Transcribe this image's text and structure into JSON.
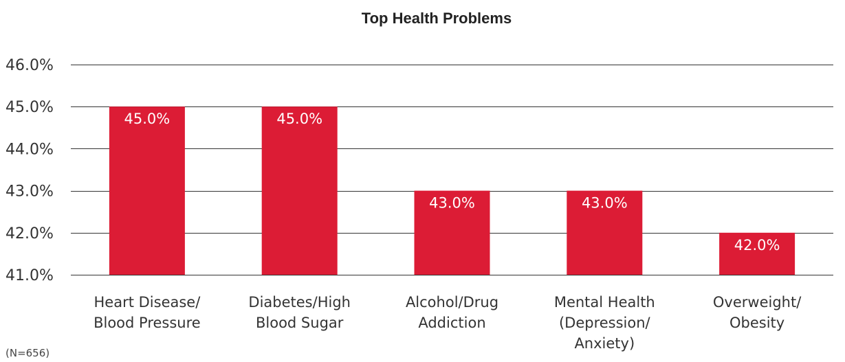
{
  "chart_data": {
    "type": "bar",
    "title": "Top Health Problems",
    "categories": [
      [
        "Heart Disease/",
        "Blood Pressure"
      ],
      [
        "Diabetes/High",
        "Blood Sugar"
      ],
      [
        "Alcohol/Drug",
        "Addiction"
      ],
      [
        "Mental Health",
        "(Depression/",
        "Anxiety)"
      ],
      [
        "Overweight/",
        "Obesity"
      ]
    ],
    "values": [
      45.0,
      45.0,
      43.0,
      43.0,
      42.0
    ],
    "data_labels": [
      "45.0%",
      "45.0%",
      "43.0%",
      "43.0%",
      "42.0%"
    ],
    "ylim": [
      41.0,
      46.0
    ],
    "y_ticks": [
      46.0,
      45.0,
      44.0,
      43.0,
      42.0,
      41.0
    ],
    "y_tick_labels": [
      "46.0%",
      "45.0%",
      "44.0%",
      "43.0%",
      "42.0%",
      "41.0%"
    ],
    "grid": true,
    "legend": "none",
    "bar_color": "#dc1c35",
    "footnote": "(N=656)"
  }
}
